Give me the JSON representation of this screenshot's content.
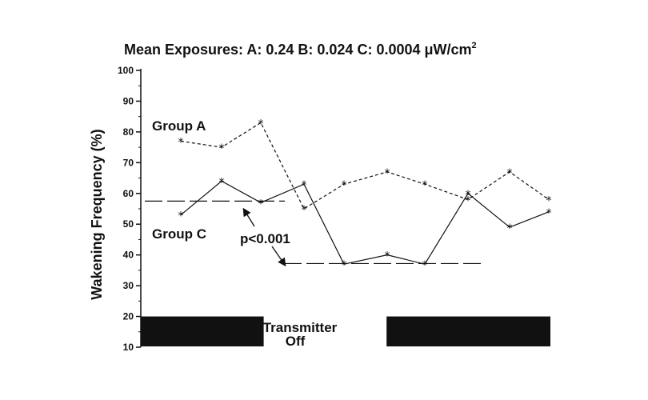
{
  "chart_data": {
    "type": "line",
    "title": "Mean Exposures:  A: 0.24  B: 0.024  C: 0.0004 μW/cm",
    "title_sup": "2",
    "ylabel": "Wakening Frequency (%)",
    "xlabel": "",
    "ylim": [
      10,
      100
    ],
    "yticks": [
      10,
      20,
      30,
      40,
      50,
      60,
      70,
      80,
      90,
      100
    ],
    "ytick_labels": [
      "10",
      "20",
      "30",
      "40",
      "50",
      "60",
      "70",
      "80",
      "90",
      "100"
    ],
    "x": [
      1,
      2,
      3,
      4,
      5,
      6,
      7,
      8,
      9,
      10
    ],
    "series": [
      {
        "name": "Group A",
        "style": "dashed",
        "values": [
          77,
          75,
          83,
          55,
          63,
          67,
          63,
          58,
          67,
          58
        ]
      },
      {
        "name": "Group C",
        "style": "solid",
        "values": [
          53,
          64,
          57,
          63,
          37,
          40,
          37,
          60,
          49,
          54
        ]
      }
    ],
    "means": [
      {
        "x_range": [
          1,
          4
        ],
        "value": 57.5,
        "style": "long-dash"
      },
      {
        "x_range": [
          4,
          9
        ],
        "value": 37.2,
        "style": "long-dash"
      }
    ],
    "annotations": {
      "p_value": "p<0.001",
      "transmitter_line1": "Transmitter",
      "transmitter_line2": "Off"
    },
    "on_blocks": [
      {
        "x_range": [
          0,
          3
        ]
      },
      {
        "x_range": [
          6,
          10
        ]
      }
    ],
    "colors": {
      "ink": "#111111",
      "background": "#ffffff"
    }
  }
}
